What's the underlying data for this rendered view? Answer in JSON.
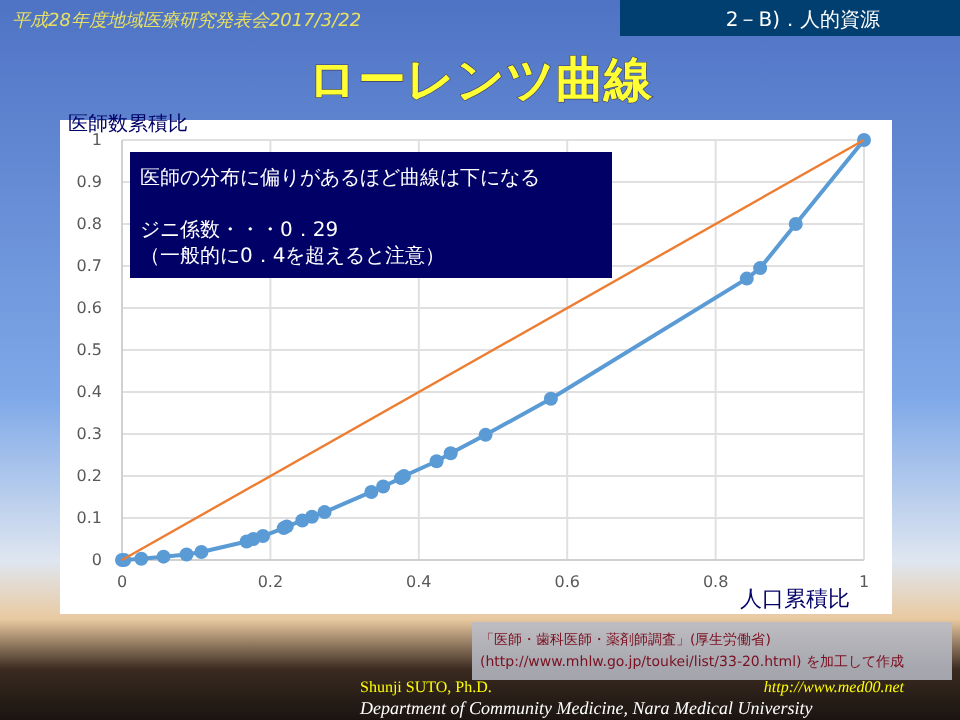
{
  "chart_data": {
    "type": "line",
    "title": "ローレンツ曲線",
    "xlabel": "人口累積比",
    "ylabel": "医師数累積比",
    "annotations": [
      "平成28年度地域医療研究発表会2017/3/22",
      "2－B)．人的資源",
      "医師の分布に偏りがあるほど曲線は下になる",
      "ジニ係数・・・0．29",
      "（一般的に0．4を超えると注意）",
      "「医師・歯科医師・薬剤師調査」(厚生労働省)\n(http://www.mhlw.go.jp/toukei/list/33-20.html) を加工して作成",
      "Shunji SUTO, Ph.D.",
      "Department of Community Medicine, Nara Medical University",
      "http://www.med00.net"
    ],
    "series": [
      {
        "color": "#5b9bd5",
        "marker": "circle",
        "x": [
          0,
          0.003,
          0.026,
          0.056,
          0.087,
          0.107,
          0.168,
          0.177,
          0.19,
          0.218,
          0.222,
          0.243,
          0.256,
          0.273,
          0.336,
          0.352,
          0.376,
          0.38,
          0.424,
          0.443,
          0.49,
          0.578,
          0.842,
          0.86,
          0.908,
          1
        ],
        "values": [
          0,
          0,
          0.003,
          0.008,
          0.013,
          0.019,
          0.044,
          0.05,
          0.057,
          0.076,
          0.08,
          0.094,
          0.103,
          0.114,
          0.162,
          0.175,
          0.195,
          0.2,
          0.235,
          0.254,
          0.298,
          0.384,
          0.67,
          0.695,
          0.8,
          1
        ]
      },
      {
        "color": "#ed7d31",
        "marker": "none",
        "x": [
          0,
          1
        ],
        "values": [
          0,
          1
        ]
      }
    ],
    "xlim": [
      0,
      1
    ],
    "ylim": [
      0,
      1
    ],
    "xticks": [
      0,
      0.2,
      0.4,
      0.6,
      0.8,
      1
    ],
    "yticks": [
      0,
      0.1,
      0.2,
      0.3,
      0.4,
      0.5,
      0.6,
      0.7,
      0.8,
      0.9,
      1
    ],
    "grid": true
  }
}
